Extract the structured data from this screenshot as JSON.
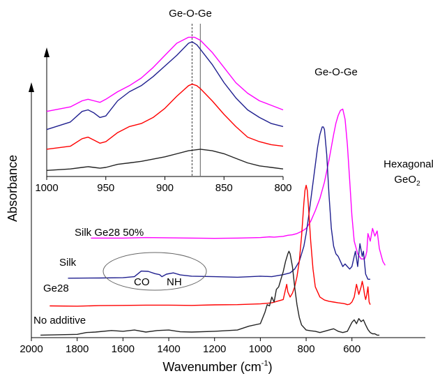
{
  "chart_data": [
    {
      "type": "line",
      "role": "main",
      "xlabel": "Wavenumber (cm",
      "xlabel_sup": "-1",
      "xlabel_close": ")",
      "ylabel": "Absorbance",
      "xlim": [
        2000,
        450
      ],
      "x_reversed": true,
      "xticks": [
        "2000",
        "1800",
        "1600",
        "1400",
        "1200",
        "1000",
        "800",
        "600"
      ],
      "xtick_values": [
        2000,
        1800,
        1600,
        1400,
        1200,
        1000,
        800,
        600
      ],
      "ylim": [
        0,
        1
      ],
      "grid": false,
      "series": [
        {
          "name": "Silk Ge28 50%",
          "color": "#ff00ff",
          "x": [
            1740,
            1600,
            1500,
            1400,
            1300,
            1200,
            1100,
            1000,
            960,
            940,
            900,
            880,
            860,
            840,
            820,
            800,
            780,
            760,
            740,
            720,
            700,
            680,
            670,
            660,
            650,
            640,
            630,
            620,
            610,
            600,
            590,
            575,
            560,
            545,
            540,
            535,
            530,
            520,
            510,
            500,
            490,
            480,
            465,
            455
          ],
          "y": [
            0.392,
            0.392,
            0.394,
            0.393,
            0.392,
            0.391,
            0.392,
            0.394,
            0.397,
            0.396,
            0.399,
            0.403,
            0.405,
            0.41,
            0.418,
            0.43,
            0.458,
            0.5,
            0.548,
            0.612,
            0.7,
            0.8,
            0.845,
            0.875,
            0.895,
            0.9,
            0.86,
            0.76,
            0.62,
            0.48,
            0.38,
            0.33,
            0.31,
            0.31,
            0.32,
            0.34,
            0.41,
            0.38,
            0.43,
            0.4,
            0.42,
            0.35,
            0.3,
            0.285
          ]
        },
        {
          "name": "Silk",
          "color": "#1f1f8f",
          "x": [
            1840,
            1700,
            1600,
            1550,
            1520,
            1490,
            1460,
            1440,
            1430,
            1410,
            1380,
            1350,
            1300,
            1200,
            1100,
            1000,
            950,
            900,
            870,
            850,
            830,
            810,
            800,
            790,
            780,
            770,
            760,
            750,
            740,
            730,
            725,
            720,
            710,
            700,
            690,
            680,
            670,
            660,
            650,
            640,
            630,
            620,
            610,
            600,
            590,
            585,
            575,
            570,
            565,
            555,
            550,
            540,
            530,
            520
          ],
          "y": [
            0.234,
            0.235,
            0.236,
            0.24,
            0.262,
            0.261,
            0.252,
            0.248,
            0.24,
            0.25,
            0.255,
            0.247,
            0.242,
            0.24,
            0.238,
            0.242,
            0.24,
            0.248,
            0.255,
            0.27,
            0.3,
            0.36,
            0.41,
            0.47,
            0.54,
            0.61,
            0.68,
            0.75,
            0.8,
            0.83,
            0.83,
            0.82,
            0.72,
            0.56,
            0.43,
            0.36,
            0.33,
            0.32,
            0.3,
            0.28,
            0.29,
            0.28,
            0.27,
            0.28,
            0.32,
            0.34,
            0.28,
            0.33,
            0.37,
            0.32,
            0.34,
            0.25,
            0.23,
            0.23
          ]
        },
        {
          "name": "Ge28",
          "color": "#ff0000",
          "x": [
            1920,
            1800,
            1700,
            1600,
            1500,
            1400,
            1300,
            1200,
            1100,
            1000,
            950,
            900,
            890,
            885,
            880,
            870,
            860,
            850,
            840,
            830,
            820,
            810,
            805,
            800,
            795,
            790,
            780,
            770,
            760,
            740,
            720,
            700,
            680,
            660,
            640,
            630,
            620,
            610,
            600,
            590,
            580,
            570,
            560,
            555,
            550,
            545,
            540,
            535,
            530,
            525,
            520
          ],
          "y": [
            0.125,
            0.124,
            0.126,
            0.127,
            0.128,
            0.128,
            0.127,
            0.129,
            0.13,
            0.133,
            0.137,
            0.15,
            0.19,
            0.21,
            0.18,
            0.16,
            0.175,
            0.2,
            0.24,
            0.3,
            0.4,
            0.53,
            0.58,
            0.6,
            0.58,
            0.52,
            0.38,
            0.27,
            0.2,
            0.16,
            0.148,
            0.143,
            0.14,
            0.137,
            0.135,
            0.133,
            0.13,
            0.132,
            0.14,
            0.16,
            0.21,
            0.17,
            0.2,
            0.222,
            0.2,
            0.17,
            0.15,
            0.17,
            0.2,
            0.14,
            0.13
          ]
        },
        {
          "name": "No additive",
          "color": "#222222",
          "x": [
            1960,
            1800,
            1760,
            1720,
            1650,
            1600,
            1550,
            1500,
            1450,
            1400,
            1350,
            1300,
            1200,
            1100,
            1050,
            1000,
            980,
            970,
            960,
            950,
            940,
            930,
            920,
            910,
            900,
            890,
            880,
            875,
            870,
            860,
            850,
            840,
            830,
            820,
            800,
            780,
            760,
            740,
            720,
            700,
            680,
            660,
            640,
            620,
            600,
            590,
            580,
            570,
            560,
            550,
            540,
            530,
            520,
            510,
            500,
            490,
            480
          ],
          "y": [
            0.01,
            0.013,
            0.02,
            0.022,
            0.028,
            0.025,
            0.03,
            0.022,
            0.028,
            0.03,
            0.023,
            0.022,
            0.025,
            0.03,
            0.045,
            0.055,
            0.1,
            0.13,
            0.125,
            0.16,
            0.14,
            0.19,
            0.2,
            0.23,
            0.26,
            0.3,
            0.33,
            0.34,
            0.33,
            0.28,
            0.2,
            0.13,
            0.08,
            0.05,
            0.03,
            0.027,
            0.025,
            0.02,
            0.025,
            0.03,
            0.035,
            0.025,
            0.02,
            0.025,
            0.06,
            0.07,
            0.055,
            0.075,
            0.063,
            0.07,
            0.05,
            0.032,
            0.02,
            0.015,
            0.015,
            0.01,
            0.01
          ]
        }
      ],
      "series_labels": [
        "Silk Ge28 50%",
        "Silk",
        "Ge28",
        "No additive"
      ],
      "annotations": {
        "geoge": "Ge-O-Ge",
        "hexagonal": "Hexagonal",
        "geo2_base": "GeO",
        "geo2_sub": "2",
        "co": "CO",
        "nh": "NH"
      }
    },
    {
      "type": "line",
      "role": "inset",
      "title": "Ge-O-Ge",
      "xlim": [
        1000,
        800
      ],
      "x_reversed": true,
      "xticks": [
        "1000",
        "950",
        "900",
        "850",
        "800"
      ],
      "xtick_values": [
        1000,
        950,
        900,
        850,
        800
      ],
      "ylim": [
        0,
        1
      ],
      "vlines": [
        {
          "x": 877,
          "style": "dashed"
        },
        {
          "x": 870,
          "style": "solid"
        }
      ],
      "series": [
        {
          "color": "#ff00ff",
          "x": [
            1000,
            980,
            970,
            965,
            960,
            955,
            950,
            940,
            930,
            920,
            910,
            900,
            890,
            880,
            875,
            870,
            860,
            850,
            840,
            830,
            820,
            810,
            800
          ],
          "y": [
            0.43,
            0.46,
            0.5,
            0.51,
            0.5,
            0.49,
            0.51,
            0.56,
            0.6,
            0.65,
            0.72,
            0.8,
            0.88,
            0.92,
            0.92,
            0.9,
            0.82,
            0.72,
            0.62,
            0.55,
            0.5,
            0.47,
            0.44
          ]
        },
        {
          "color": "#1f1f8f",
          "x": [
            1000,
            980,
            970,
            965,
            960,
            955,
            950,
            940,
            930,
            920,
            910,
            900,
            890,
            880,
            877,
            873,
            870,
            860,
            850,
            840,
            830,
            820,
            810,
            800
          ],
          "y": [
            0.31,
            0.36,
            0.43,
            0.44,
            0.42,
            0.39,
            0.4,
            0.5,
            0.56,
            0.6,
            0.66,
            0.73,
            0.8,
            0.88,
            0.89,
            0.87,
            0.84,
            0.74,
            0.62,
            0.52,
            0.44,
            0.39,
            0.35,
            0.33
          ]
        },
        {
          "color": "#ff0000",
          "x": [
            1000,
            980,
            970,
            965,
            960,
            955,
            950,
            940,
            930,
            920,
            910,
            900,
            890,
            880,
            877,
            873,
            870,
            860,
            850,
            840,
            830,
            820,
            810,
            800
          ],
          "y": [
            0.18,
            0.2,
            0.25,
            0.26,
            0.24,
            0.22,
            0.23,
            0.29,
            0.33,
            0.35,
            0.39,
            0.45,
            0.53,
            0.6,
            0.61,
            0.6,
            0.58,
            0.5,
            0.41,
            0.33,
            0.26,
            0.23,
            0.21,
            0.2
          ]
        },
        {
          "color": "#222222",
          "x": [
            1000,
            980,
            970,
            965,
            960,
            955,
            950,
            940,
            930,
            920,
            900,
            880,
            870,
            860,
            850,
            840,
            830,
            820,
            810,
            800
          ],
          "y": [
            0.04,
            0.05,
            0.06,
            0.065,
            0.06,
            0.055,
            0.06,
            0.08,
            0.09,
            0.1,
            0.13,
            0.17,
            0.18,
            0.17,
            0.15,
            0.12,
            0.09,
            0.07,
            0.06,
            0.05
          ]
        }
      ]
    }
  ]
}
